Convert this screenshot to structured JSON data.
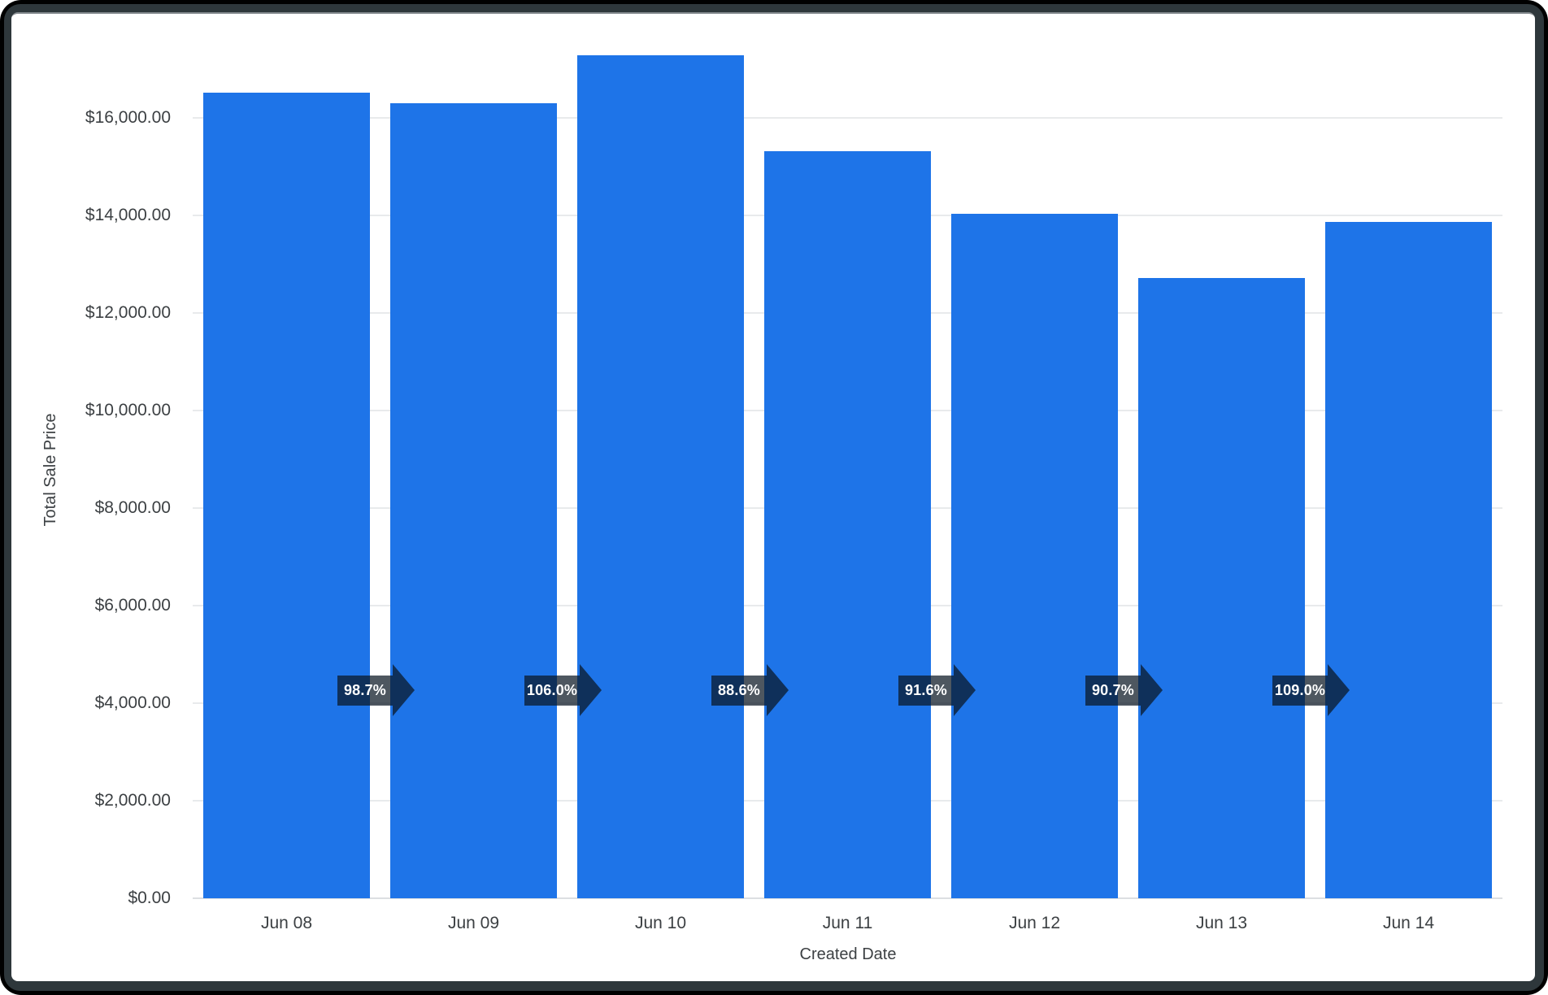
{
  "window": {
    "outer_background": "#000000",
    "frame_color": "#2e373b",
    "frame_highlight": "#83898d",
    "panel_color": "#ffffff"
  },
  "chart_data": {
    "type": "bar",
    "title": "",
    "xlabel": "Created Date",
    "ylabel": "Total Sale Price",
    "categories": [
      "Jun 08",
      "Jun 09",
      "Jun 10",
      "Jun 11",
      "Jun 12",
      "Jun 13",
      "Jun 14"
    ],
    "values": [
      16520,
      16305,
      17285,
      15315,
      14030,
      12725,
      13870
    ],
    "percent_change_labels": [
      "98.7%",
      "106.0%",
      "88.6%",
      "91.6%",
      "90.7%",
      "109.0%"
    ],
    "y_ticks": [
      {
        "value": 0,
        "label": "$0.00"
      },
      {
        "value": 2000,
        "label": "$2,000.00"
      },
      {
        "value": 4000,
        "label": "$4,000.00"
      },
      {
        "value": 6000,
        "label": "$6,000.00"
      },
      {
        "value": 8000,
        "label": "$8,000.00"
      },
      {
        "value": 10000,
        "label": "$10,000.00"
      },
      {
        "value": 12000,
        "label": "$12,000.00"
      },
      {
        "value": 14000,
        "label": "$14,000.00"
      },
      {
        "value": 16000,
        "label": "$16,000.00"
      }
    ],
    "ylim": [
      0,
      17600
    ],
    "grid": true,
    "legend_position": "none",
    "bar_color": "#1e74e8",
    "arrow_fill": "rgba(10,22,34,0.72)",
    "arrow_text_color": "#ffffff",
    "axis_text_color": "#3c4043",
    "gridline_color": "#e8eaec",
    "baseline_color": "#dcdfe2"
  }
}
